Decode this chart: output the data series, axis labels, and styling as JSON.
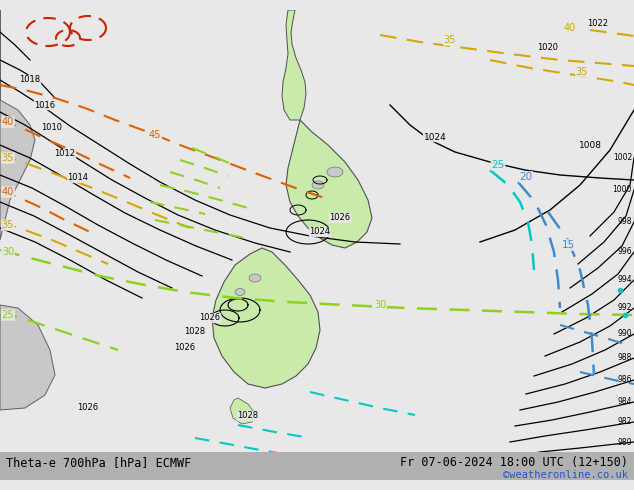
{
  "title_left": "Theta-e 700hPa [hPa] ECMWF",
  "title_right": "Fr 07-06-2024 18:00 UTC (12+150)",
  "copyright": "©weatheronline.co.uk",
  "bg_color": "#e8e8e8",
  "land_color": "#c8c8c8",
  "nz_color": "#c8eaaa",
  "bar_color": "#b0b0b0",
  "figsize": [
    6.34,
    4.9
  ],
  "dpi": 100,
  "xlim": [
    0,
    634
  ],
  "ylim": [
    0,
    470
  ]
}
